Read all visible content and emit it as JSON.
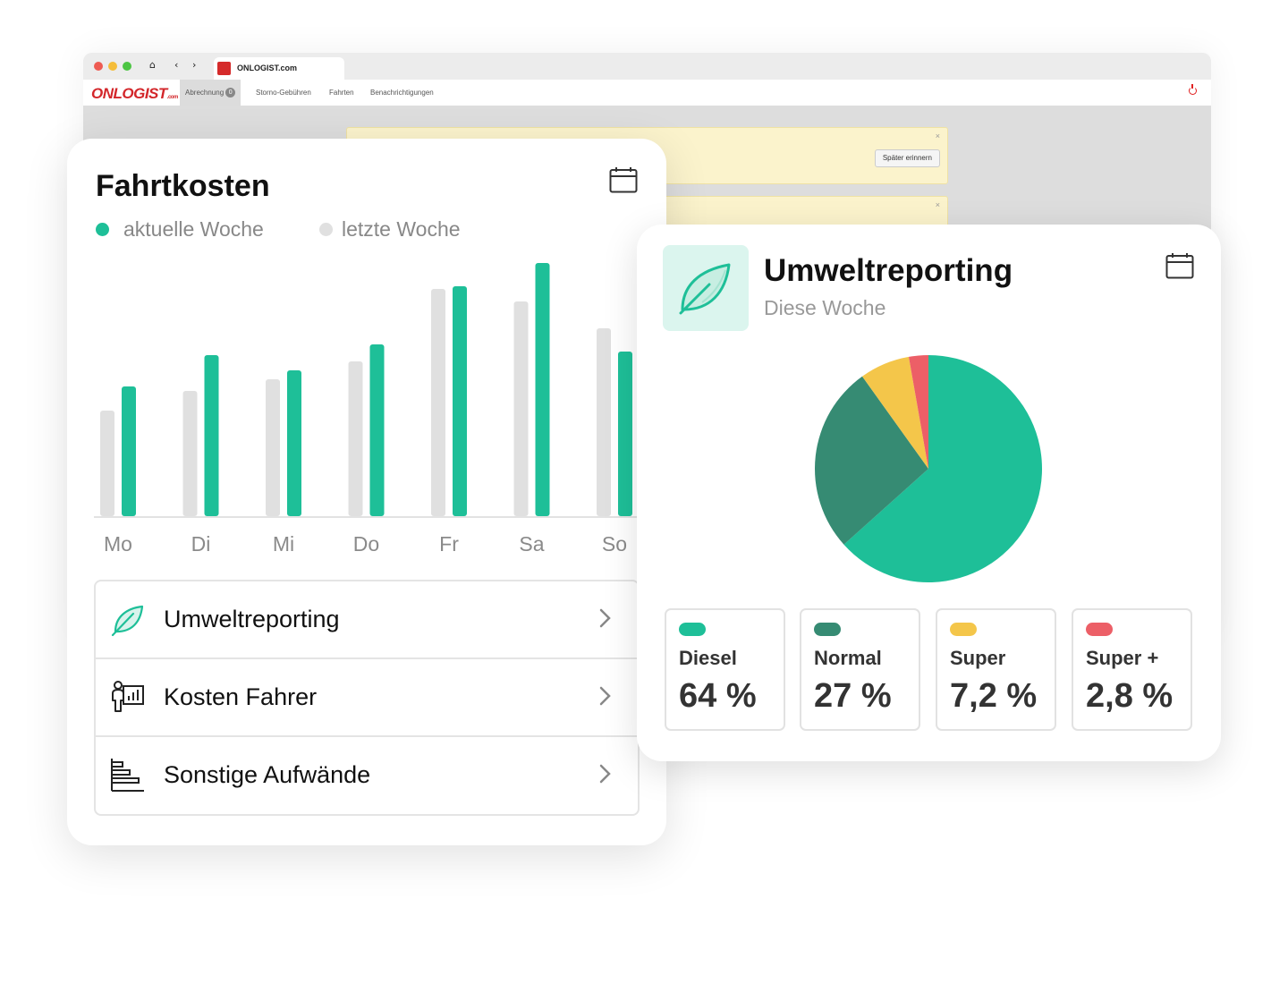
{
  "browser": {
    "tab_title": "ONLOGIST.com",
    "logo_text": "ONLOGIST",
    "logo_suffix": ".com",
    "nav": [
      {
        "label": "Abrechnung",
        "badge": "0"
      },
      {
        "label": "Storno-Gebühren"
      },
      {
        "label": "Fahrten"
      },
      {
        "label": "Benachrichtigungen"
      }
    ],
    "notice_button": "Später erinnern",
    "notice_close": "×"
  },
  "fahrtkosten": {
    "title": "Fahrtkosten",
    "legend": [
      "aktuelle Woche",
      "letzte Woche"
    ],
    "menu": [
      {
        "label": "Umweltreporting",
        "icon": "leaf-icon"
      },
      {
        "label": "Kosten Fahrer",
        "icon": "driver-chart-icon"
      },
      {
        "label": "Sonstige Aufwände",
        "icon": "bar-list-icon"
      }
    ]
  },
  "umwelt": {
    "title": "Umweltreporting",
    "subtitle": "Diese Woche",
    "fuels": [
      {
        "name": "Diesel",
        "value": "64 %",
        "color": "#1ebf98"
      },
      {
        "name": "Normal",
        "value": "27 %",
        "color": "#368b73"
      },
      {
        "name": "Super",
        "value": "7,2 %",
        "color": "#f4c64a"
      },
      {
        "name": "Super +",
        "value": "2,8 %",
        "color": "#ec5f67"
      }
    ]
  },
  "chart_data": [
    {
      "type": "bar",
      "categories": [
        "Mo",
        "Di",
        "Mi",
        "Do",
        "Fr",
        "Sa",
        "So"
      ],
      "series": [
        {
          "name": "letzte Woche",
          "color": "#e0e0e0",
          "values": [
            118,
            140,
            153,
            173,
            254,
            240,
            210
          ]
        },
        {
          "name": "aktuelle Woche",
          "color": "#1ebf98",
          "values": [
            145,
            180,
            163,
            192,
            257,
            283,
            184
          ]
        }
      ],
      "ylim": [
        0,
        290
      ],
      "grid": false
    },
    {
      "type": "pie",
      "categories": [
        "Diesel",
        "Normal",
        "Super",
        "Super +"
      ],
      "values": [
        64,
        27,
        7.2,
        2.8
      ],
      "colors": [
        "#1ebf98",
        "#368b73",
        "#f4c64a",
        "#ec5f67"
      ]
    }
  ]
}
